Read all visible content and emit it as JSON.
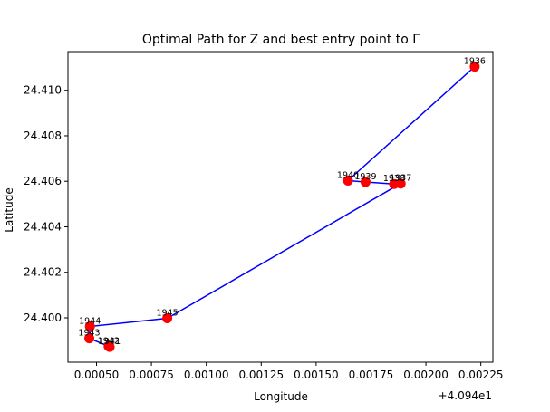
{
  "chart_data": {
    "type": "line",
    "title": "Optimal Path for Z and best entry point to Γ",
    "xlabel": "Longitude",
    "ylabel": "Latitude",
    "x_offset_label": "+4.094e1",
    "x_offset": 40.94,
    "xlim": [
      0.00037,
      0.002305
    ],
    "ylim": [
      24.39805,
      24.4117
    ],
    "xticks": [
      0.0005,
      0.00075,
      0.001,
      0.00125,
      0.0015,
      0.00175,
      0.002,
      0.00225
    ],
    "xtick_labels": [
      "0.00050",
      "0.00075",
      "0.00100",
      "0.00125",
      "0.00150",
      "0.00175",
      "0.00200",
      "0.00225"
    ],
    "yticks": [
      24.4,
      24.402,
      24.404,
      24.406,
      24.408,
      24.41
    ],
    "ytick_labels": [
      "24.400",
      "24.402",
      "24.404",
      "24.406",
      "24.408",
      "24.410"
    ],
    "line_color": "#0000ff",
    "marker_color": "#ff0000",
    "path": [
      {
        "label": "1936",
        "x": 0.002222,
        "y": 24.41104
      },
      {
        "label": "1940",
        "x": 0.001645,
        "y": 24.40603
      },
      {
        "label": "1939",
        "x": 0.001725,
        "y": 24.40597
      },
      {
        "label": "1938",
        "x": 0.001855,
        "y": 24.40588
      },
      {
        "label": "1937",
        "x": 0.001885,
        "y": 24.4059
      },
      {
        "label": "1945",
        "x": 0.000822,
        "y": 24.39998
      },
      {
        "label": "1944",
        "x": 0.00047,
        "y": 24.39962
      },
      {
        "label": "1943",
        "x": 0.000467,
        "y": 24.3991
      },
      {
        "label": "1942",
        "x": 0.000555,
        "y": 24.39875
      },
      {
        "label": "1941",
        "x": 0.00056,
        "y": 24.39872
      }
    ]
  }
}
